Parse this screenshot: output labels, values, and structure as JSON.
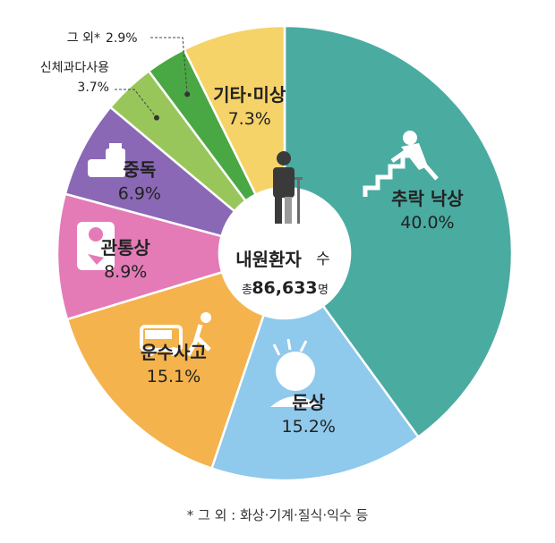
{
  "chart_data": {
    "type": "pie",
    "center_label": {
      "title": "내원환자",
      "title_suffix": "수",
      "total_prefix": "총",
      "total_value": "86,633",
      "total_suffix": "명"
    },
    "slices": [
      {
        "label": "추락·낙상",
        "display_label": "추락  낙상",
        "value": 40.0,
        "display": "40.0%",
        "color": "#4aaba1",
        "icon": "falling-stairs-icon"
      },
      {
        "label": "둔상",
        "display_label": "둔상",
        "value": 15.2,
        "display": "15.2%",
        "color": "#8fc9ec",
        "icon": "head-injury-icon"
      },
      {
        "label": "운수사고",
        "display_label": "운수사고",
        "value": 15.1,
        "display": "15.1%",
        "color": "#f4b34c",
        "icon": "car-accident-icon"
      },
      {
        "label": "관통상",
        "display_label": "관통상",
        "value": 8.9,
        "display": "8.9%",
        "color": "#e47bb7",
        "icon": "penetrating-injury-icon"
      },
      {
        "label": "중독",
        "display_label": "중독",
        "value": 6.9,
        "display": "6.9%",
        "color": "#8a68b5",
        "icon": "pill-bottles-icon"
      },
      {
        "label": "신체과다사용",
        "display_label": "신체과다사용",
        "value": 3.7,
        "display": "3.7%",
        "color": "#99c65a",
        "icon": ""
      },
      {
        "label": "그 외*",
        "display_label": "그 외*",
        "value": 2.9,
        "display": "2.9%",
        "color": "#4aa844",
        "icon": ""
      },
      {
        "label": "기타·미상",
        "display_label": "기타·미상",
        "value": 7.3,
        "display": "7.3%",
        "color": "#f6d369",
        "icon": ""
      }
    ],
    "footnote": "* 그 외 : 화상·기계·질식·익수 등"
  }
}
